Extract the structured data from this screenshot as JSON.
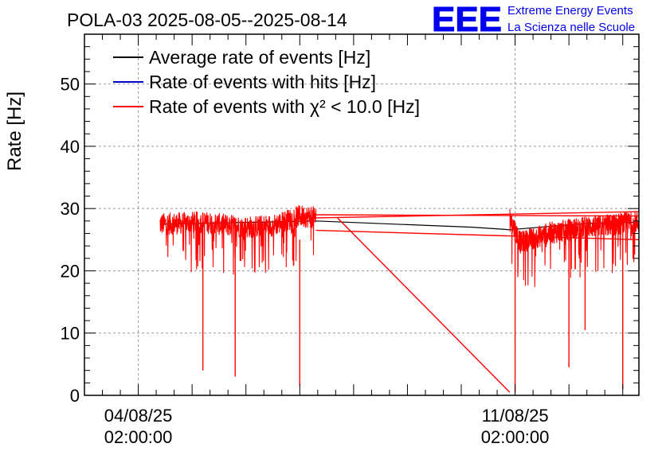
{
  "chart_data": {
    "type": "line",
    "title": "POLA-03 2025-08-05--2025-08-14",
    "ylabel": "Rate [Hz]",
    "xlabel": "",
    "ylim": [
      0,
      58
    ],
    "grid": true,
    "legend_position": "top-left",
    "x_ticks": [
      {
        "date": "04/08/25",
        "time": "02:00:00",
        "day": 0
      },
      {
        "date": "11/08/25",
        "time": "02:00:00",
        "day": 7
      }
    ],
    "y_ticks": [
      "0",
      "10",
      "20",
      "30",
      "40",
      "50"
    ],
    "series": [
      {
        "name": "Average rate of events [Hz]",
        "color": "#000000",
        "points": [
          [
            0.4,
            27.5
          ],
          [
            3.3,
            28.0
          ],
          [
            6.2,
            27.0
          ],
          [
            6.9,
            26.6
          ],
          [
            8.3,
            27.6
          ],
          [
            9.3,
            27.8
          ]
        ]
      },
      {
        "name": "Rate of events with hits [Hz]",
        "color": "#0000cc",
        "points": []
      },
      {
        "name": "Rate of events with χ² < 10.0 [Hz]",
        "color": "#ff0000",
        "segments": [
          {
            "start": 0.4,
            "end": 3.3,
            "base": [
              [
                0.4,
                27.5
              ],
              [
                1.2,
                27.8
              ],
              [
                2.0,
                27.0
              ],
              [
                2.5,
                27.3
              ],
              [
                3.0,
                28.8
              ],
              [
                3.3,
                28.6
              ]
            ]
          },
          {
            "start": 6.9,
            "end": 9.3,
            "base": [
              [
                6.9,
                28.5
              ],
              [
                7.1,
                24.5
              ],
              [
                7.6,
                26.0
              ],
              [
                8.3,
                27.0
              ],
              [
                9.3,
                27.8
              ]
            ]
          }
        ],
        "dips": [
          [
            1.2,
            4.0
          ],
          [
            1.8,
            3.0
          ],
          [
            3.0,
            1.5
          ],
          [
            7.0,
            0.5
          ],
          [
            8.0,
            4.5
          ],
          [
            8.3,
            10.5
          ],
          [
            9.0,
            1.0
          ]
        ],
        "gap_line": [
          [
            3.7,
            28.5
          ],
          [
            6.9,
            0.5
          ]
        ],
        "return_lines": [
          [
            3.3,
            28.5,
            9.3,
            29.5
          ],
          [
            3.3,
            26.5,
            9.3,
            25.0
          ],
          [
            3.3,
            29.0,
            9.3,
            28.8
          ]
        ]
      }
    ]
  },
  "logo": {
    "text": "EEE",
    "line1": "Extreme Energy Events",
    "line2": "La Scienza nelle Scuole",
    "color": "#0000ee"
  }
}
